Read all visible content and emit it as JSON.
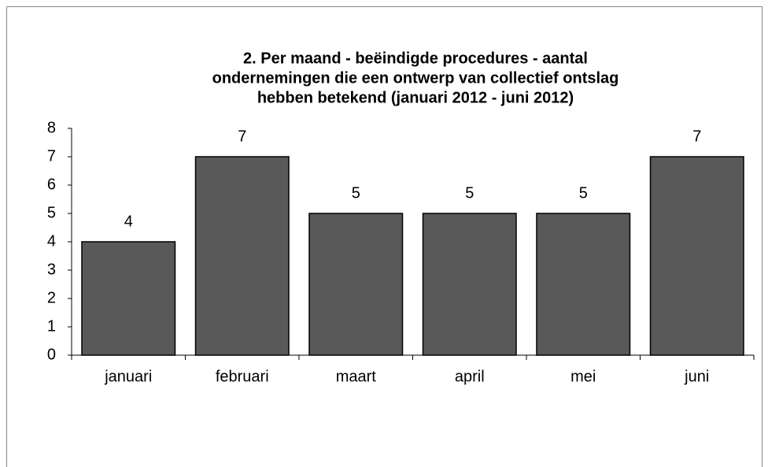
{
  "chart_data": {
    "type": "bar",
    "title": [
      "2. Per maand - beëindigde procedures - aantal",
      "ondernemingen die een ontwerp van collectief ontslag",
      "hebben betekend (januari 2012 - juni 2012)"
    ],
    "categories": [
      "januari",
      "februari",
      "maart",
      "april",
      "mei",
      "juni"
    ],
    "values": [
      4,
      7,
      5,
      5,
      5,
      7
    ],
    "color": "#595959",
    "ylim": [
      0,
      8
    ],
    "yticks": [
      0,
      1,
      2,
      3,
      4,
      5,
      6,
      7,
      8
    ],
    "grid": false
  }
}
